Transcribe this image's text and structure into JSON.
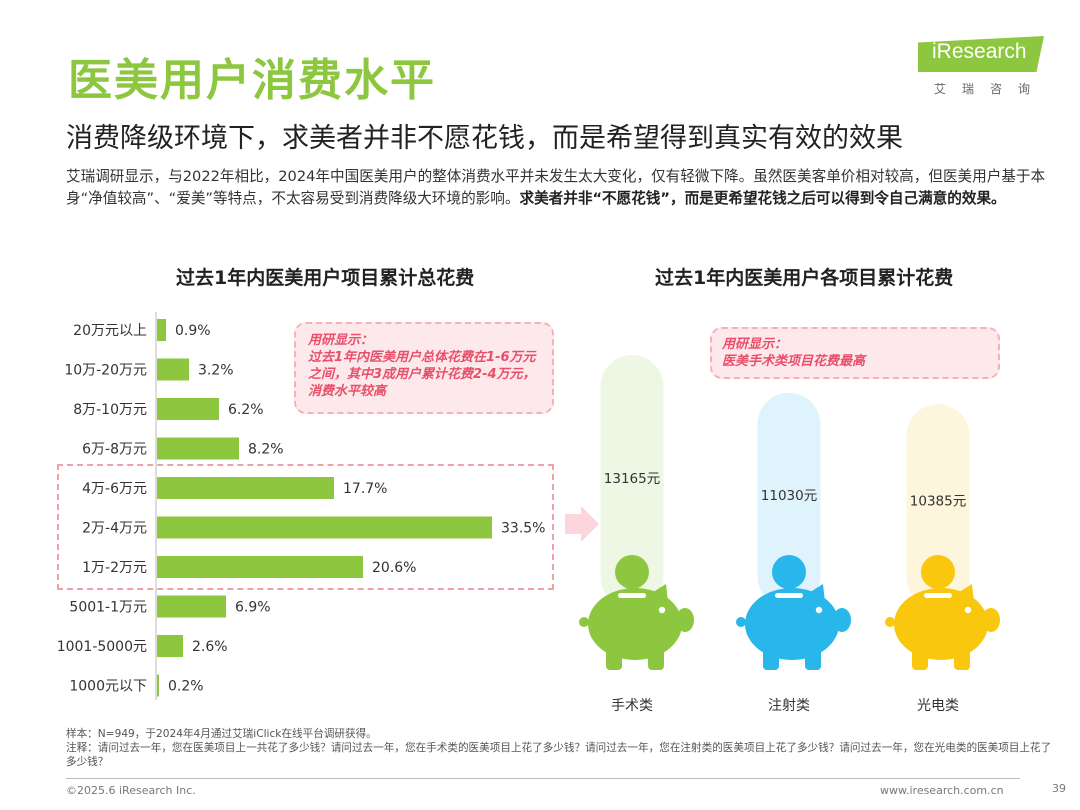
{
  "header": {
    "title": "医美用户消费水平",
    "subtitle": "消费降级环境下，求美者并非不愿花钱，而是希望得到真实有效的效果",
    "logo_text": "iResearch",
    "logo_cn": "艾瑞咨询"
  },
  "body": {
    "text_normal": "艾瑞调研显示，与2022年相比，2024年中国医美用户的整体消费水平并未发生太大变化，仅有轻微下降。虽然医美客单价相对较高，但医美用户基于本身“净值较高”、“爱美”等特点，不太容易受到消费降级大环境的影响。",
    "text_bold": "求美者并非“不愿花钱”，而是更希望花钱之后可以得到令自己满意的效果。"
  },
  "callouts": {
    "left": "用研显示：\n过去1年内医美用户总体花费在1-6万元之间，其中3成用户累计花费2-4万元，消费水平较高",
    "right": "用研显示：\n医美手术类项目花费最高"
  },
  "chart_data": [
    {
      "type": "bar",
      "orientation": "horizontal",
      "title": "过去1年内医美用户项目累计总花费",
      "categories": [
        "20万元以上",
        "10万-20万元",
        "8万-10万元",
        "6万-8万元",
        "4万-6万元",
        "2万-4万元",
        "1万-2万元",
        "5001-1万元",
        "1001-5000元",
        "1000元以下"
      ],
      "values": [
        0.9,
        3.2,
        6.2,
        8.2,
        17.7,
        33.5,
        20.6,
        6.9,
        2.6,
        0.2
      ],
      "value_suffix": "%",
      "highlighted": [
        "4万-6万元",
        "2万-4万元",
        "1万-2万元"
      ],
      "color": "#8dc63f"
    },
    {
      "type": "bar",
      "title": "过去1年内医美用户各项目累计花费",
      "categories": [
        "手术类",
        "注射类",
        "光电类"
      ],
      "values": [
        13165,
        11030,
        10385
      ],
      "value_suffix": "元",
      "colors": [
        "#8dc63f",
        "#29b6ea",
        "#f9c80e"
      ],
      "track_colors": [
        "#eef7e3",
        "#dff3fc",
        "#fdf5dc"
      ]
    }
  ],
  "footer": {
    "note1": "样本：N=949，于2024年4月通过艾瑞iClick在线平台调研获得。",
    "note2": "注释：请问过去一年，您在医美项目上一共花了多少钱？请问过去一年，您在手术类的医美项目上花了多少钱？请问过去一年，您在注射类的医美项目上花了多少钱？请问过去一年，您在光电类的医美项目上花了多少钱？",
    "copyright": "©2025.6 iResearch Inc.",
    "website": "www.iresearch.com.cn",
    "page": "39"
  }
}
